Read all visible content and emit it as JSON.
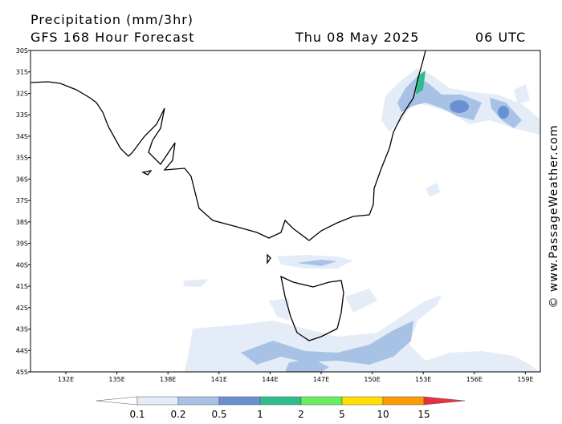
{
  "header": {
    "title": "Precipitation (mm/3hr)",
    "model": "GFS 168 Hour Forecast",
    "date": "Thu 08 May 2025",
    "time": "06 UTC"
  },
  "lat_labels": [
    "30S",
    "31S",
    "32S",
    "33S",
    "34S",
    "35S",
    "36S",
    "37S",
    "38S",
    "39S",
    "40S",
    "41S",
    "42S",
    "43S",
    "44S",
    "45S"
  ],
  "lon_labels": [
    "132E",
    "135E",
    "138E",
    "141E",
    "144E",
    "147E",
    "150E",
    "153E",
    "156E",
    "159E"
  ],
  "legend": {
    "labels": [
      "0.1",
      "0.2",
      "0.5",
      "1",
      "2",
      "5",
      "10",
      "15"
    ],
    "colors": [
      "#ffffff",
      "#e4ecf8",
      "#a8c2e6",
      "#6a90d4",
      "#2ebe8c",
      "#66ee5e",
      "#ffde00",
      "#ff9a00",
      "#e8303e"
    ]
  },
  "credit": "© www.PassageWeather.com"
}
